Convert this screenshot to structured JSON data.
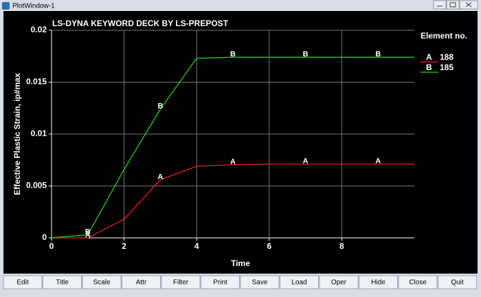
{
  "window": {
    "title": "PlotWindow-1"
  },
  "buttons": [
    "Edit",
    "Title",
    "Scale",
    "Attr",
    "Filter",
    "Print",
    "Save",
    "Load",
    "Oper",
    "Hide",
    "Close",
    "Quit"
  ],
  "chart_data": {
    "type": "line",
    "title": "LS-DYNA KEYWORD DECK BY LS-PREPOST",
    "x_label": "Time",
    "y_label": "Effective Plastic Strain, ip#max",
    "x": [
      0,
      1,
      2,
      3,
      4,
      5,
      6,
      7,
      8,
      9,
      10
    ],
    "series": [
      {
        "name": "188",
        "label": "A",
        "color": "#ff2020",
        "values": [
          0,
          0,
          0.0018,
          0.0056,
          0.0069,
          0.00705,
          0.0071,
          0.0071,
          0.0071,
          0.0071,
          0.0071
        ]
      },
      {
        "name": "185",
        "label": "B",
        "color": "#22dd22",
        "values": [
          0,
          0.0003,
          0.0066,
          0.0124,
          0.0173,
          0.0174,
          0.0174,
          0.0174,
          0.0174,
          0.0174,
          0.0174
        ]
      }
    ],
    "legend_title": "Element no.",
    "xlim": [
      0,
      10
    ],
    "xticks": [
      0,
      2,
      4,
      6,
      8
    ],
    "ylim": [
      0,
      0.02
    ],
    "yticks": [
      0,
      0.005,
      0.01,
      0.015,
      0.02
    ],
    "grid": true
  }
}
